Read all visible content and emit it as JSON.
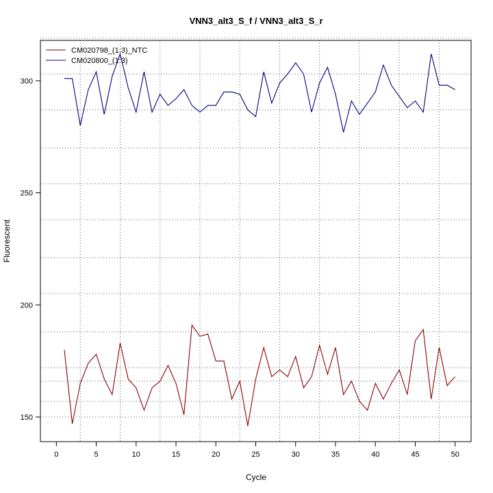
{
  "chart_data": {
    "type": "line",
    "title": "VNN3_alt3_S_f / VNN3_alt3_S_r",
    "xlabel": "Cycle",
    "ylabel": "Fluorescent",
    "xlim": [
      -2,
      52
    ],
    "ylim": [
      139,
      318
    ],
    "x_ticks": [
      0,
      5,
      10,
      15,
      20,
      25,
      30,
      35,
      40,
      45,
      50
    ],
    "y_ticks": [
      150,
      200,
      250,
      300
    ],
    "grid": true,
    "grid_vertical": [
      3,
      8,
      13,
      18,
      23,
      28,
      33,
      38,
      43,
      48
    ],
    "grid_horizontal": [
      150,
      157,
      166,
      172,
      188,
      205,
      221,
      238,
      254,
      270,
      287,
      303,
      319
    ],
    "legend_position": "top-left",
    "x": [
      1,
      2,
      3,
      4,
      5,
      6,
      7,
      8,
      9,
      10,
      11,
      12,
      13,
      14,
      15,
      16,
      17,
      18,
      19,
      20,
      21,
      22,
      23,
      24,
      25,
      26,
      27,
      28,
      29,
      30,
      31,
      32,
      33,
      34,
      35,
      36,
      37,
      38,
      39,
      40,
      41,
      42,
      43,
      44,
      45,
      46,
      47,
      48,
      49,
      50
    ],
    "series": [
      {
        "name": "CM020798_(1:3)_NTC",
        "color": "#8b0000",
        "values": [
          180,
          147,
          165,
          174,
          178,
          167,
          160,
          183,
          167,
          163,
          153,
          163,
          166,
          173,
          165,
          151,
          191,
          186,
          187,
          175,
          175,
          158,
          166,
          146,
          167,
          181,
          168,
          171,
          168,
          177,
          163,
          168,
          182,
          169,
          181,
          160,
          166,
          157,
          153,
          165,
          158,
          165,
          171,
          160,
          184,
          189,
          158,
          181,
          164,
          168
        ]
      },
      {
        "name": "CM020800_(1:3)",
        "color": "#000080",
        "values": [
          301,
          301,
          280,
          296,
          304,
          285,
          302,
          312,
          297,
          286,
          304,
          286,
          294,
          289,
          292,
          296,
          289,
          286,
          289,
          289,
          295,
          295,
          294,
          287,
          284,
          304,
          290,
          299,
          303,
          308,
          303,
          286,
          299,
          306,
          294,
          277,
          291,
          285,
          290,
          295,
          307,
          298,
          293,
          288,
          291,
          286,
          312,
          298,
          298,
          296
        ]
      }
    ]
  }
}
